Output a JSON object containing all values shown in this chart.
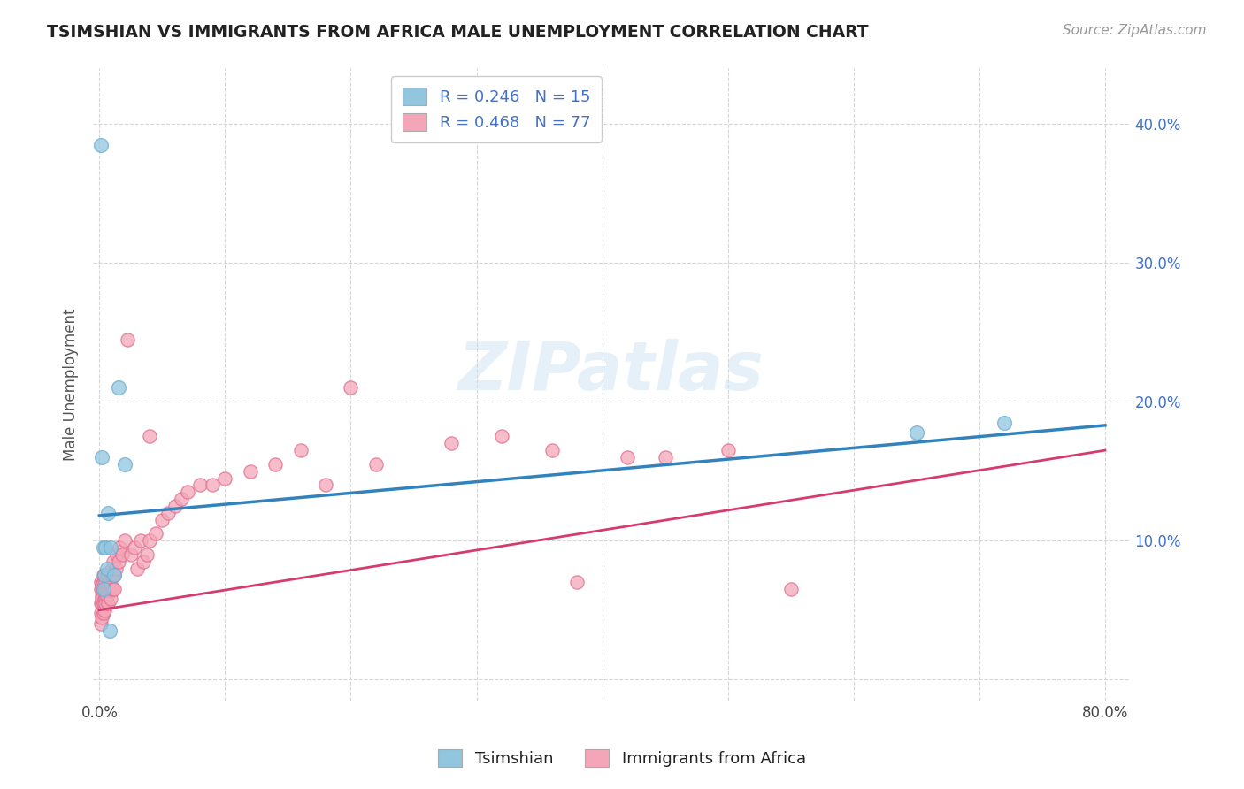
{
  "title": "TSIMSHIAN VS IMMIGRANTS FROM AFRICA MALE UNEMPLOYMENT CORRELATION CHART",
  "source": "Source: ZipAtlas.com",
  "ylabel": "Male Unemployment",
  "xlim": [
    -0.005,
    0.82
  ],
  "ylim": [
    -0.015,
    0.44
  ],
  "blue_color": "#92c5de",
  "blue_edge_color": "#6baed6",
  "pink_color": "#f4a6b8",
  "pink_edge_color": "#e07090",
  "blue_line_color": "#3182bd",
  "pink_line_color": "#d63b6e",
  "blue_trend_x": [
    0.0,
    0.8
  ],
  "blue_trend_y": [
    0.118,
    0.183
  ],
  "pink_trend_x": [
    0.0,
    0.8
  ],
  "pink_trend_y": [
    0.05,
    0.165
  ],
  "tsimshian_x": [
    0.001,
    0.002,
    0.003,
    0.004,
    0.005,
    0.006,
    0.007,
    0.009,
    0.012,
    0.015,
    0.02,
    0.65,
    0.72,
    0.003,
    0.008
  ],
  "tsimshian_y": [
    0.385,
    0.16,
    0.095,
    0.075,
    0.095,
    0.08,
    0.12,
    0.095,
    0.075,
    0.21,
    0.155,
    0.178,
    0.185,
    0.065,
    0.035
  ],
  "africa_x": [
    0.001,
    0.001,
    0.001,
    0.001,
    0.001,
    0.002,
    0.002,
    0.002,
    0.002,
    0.002,
    0.003,
    0.003,
    0.003,
    0.003,
    0.003,
    0.004,
    0.004,
    0.004,
    0.004,
    0.005,
    0.005,
    0.005,
    0.005,
    0.006,
    0.006,
    0.006,
    0.007,
    0.007,
    0.007,
    0.008,
    0.008,
    0.008,
    0.009,
    0.009,
    0.01,
    0.01,
    0.011,
    0.012,
    0.012,
    0.013,
    0.014,
    0.015,
    0.016,
    0.018,
    0.02,
    0.022,
    0.025,
    0.028,
    0.03,
    0.033,
    0.035,
    0.038,
    0.04,
    0.04,
    0.045,
    0.05,
    0.055,
    0.06,
    0.065,
    0.07,
    0.08,
    0.09,
    0.1,
    0.12,
    0.14,
    0.16,
    0.18,
    0.2,
    0.22,
    0.28,
    0.32,
    0.36,
    0.38,
    0.42,
    0.45,
    0.5,
    0.55
  ],
  "africa_y": [
    0.055,
    0.065,
    0.07,
    0.04,
    0.048,
    0.06,
    0.068,
    0.055,
    0.045,
    0.058,
    0.07,
    0.065,
    0.055,
    0.075,
    0.048,
    0.065,
    0.058,
    0.075,
    0.05,
    0.07,
    0.058,
    0.065,
    0.055,
    0.075,
    0.065,
    0.06,
    0.075,
    0.068,
    0.055,
    0.07,
    0.065,
    0.078,
    0.068,
    0.058,
    0.075,
    0.065,
    0.085,
    0.075,
    0.065,
    0.08,
    0.09,
    0.085,
    0.095,
    0.09,
    0.1,
    0.245,
    0.09,
    0.095,
    0.08,
    0.1,
    0.085,
    0.09,
    0.1,
    0.175,
    0.105,
    0.115,
    0.12,
    0.125,
    0.13,
    0.135,
    0.14,
    0.14,
    0.145,
    0.15,
    0.155,
    0.165,
    0.14,
    0.21,
    0.155,
    0.17,
    0.175,
    0.165,
    0.07,
    0.16,
    0.16,
    0.165,
    0.065
  ],
  "watermark": "ZIPatlas",
  "legend_label1": "Tsimshian",
  "legend_label2": "Immigrants from Africa"
}
